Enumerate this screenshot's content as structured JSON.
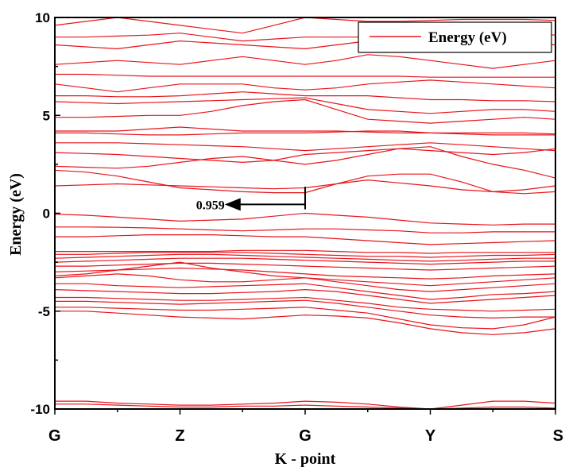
{
  "chart_data": {
    "type": "line",
    "title": "",
    "xlabel": "K - point",
    "ylabel": "Energy (eV)",
    "ylim": [
      -10,
      10
    ],
    "y_ticks": [
      "10",
      "5",
      "0",
      "-5",
      "-10"
    ],
    "x_ticks": [
      "G",
      "Z",
      "G",
      "Y",
      "S"
    ],
    "x_tick_positions": [
      0,
      1,
      2,
      3,
      4
    ],
    "grid": false,
    "legend": {
      "position": "top-right",
      "label": "Energy (eV)"
    },
    "series_color": "#e8141b",
    "annotation": {
      "text": "0.959",
      "x": 2.0,
      "y_from": 0.2,
      "y_to": 1.35,
      "arrow_to_x": 1.37,
      "arrow_to_y": 0.45
    },
    "x": [
      0,
      0.25,
      0.5,
      0.75,
      1,
      1.25,
      1.5,
      1.75,
      2,
      2.25,
      2.5,
      2.75,
      3,
      3.25,
      3.5,
      3.75,
      4
    ],
    "series": [
      {
        "values": [
          -9.6,
          -9.6,
          -9.7,
          -9.75,
          -9.8,
          -9.8,
          -9.75,
          -9.7,
          -9.6,
          -9.65,
          -9.75,
          -9.9,
          -10.0,
          -9.8,
          -9.6,
          -9.6,
          -9.7
        ]
      },
      {
        "values": [
          -9.75,
          -9.75,
          -9.8,
          -9.85,
          -9.9,
          -9.9,
          -9.85,
          -9.85,
          -9.8,
          -9.85,
          -9.9,
          -9.95,
          -10.0,
          -9.95,
          -9.9,
          -9.9,
          -9.95
        ]
      },
      {
        "values": [
          -5.0,
          -5.0,
          -5.1,
          -5.2,
          -5.3,
          -5.35,
          -5.4,
          -5.3,
          -5.2,
          -5.25,
          -5.35,
          -5.6,
          -5.9,
          -6.1,
          -6.2,
          -6.1,
          -5.9
        ]
      },
      {
        "values": [
          -4.8,
          -4.8,
          -4.85,
          -4.9,
          -4.95,
          -4.95,
          -4.9,
          -4.85,
          -4.8,
          -4.95,
          -5.1,
          -5.4,
          -5.7,
          -5.85,
          -5.9,
          -5.7,
          -5.3
        ]
      },
      {
        "values": [
          -4.5,
          -4.5,
          -4.55,
          -4.6,
          -4.65,
          -4.6,
          -4.55,
          -4.5,
          -4.45,
          -4.6,
          -4.8,
          -5.0,
          -5.2,
          -5.3,
          -5.35,
          -5.3,
          -5.3
        ]
      },
      {
        "values": [
          -4.3,
          -4.3,
          -4.35,
          -4.4,
          -4.45,
          -4.45,
          -4.4,
          -4.35,
          -4.3,
          -4.45,
          -4.6,
          -4.8,
          -4.9,
          -4.95,
          -5.0,
          -4.95,
          -4.9
        ]
      },
      {
        "values": [
          -3.9,
          -3.95,
          -4.0,
          -4.05,
          -4.1,
          -4.1,
          -4.05,
          -4.0,
          -3.9,
          -4.0,
          -4.2,
          -4.4,
          -4.6,
          -4.5,
          -4.4,
          -4.3,
          -4.2
        ]
      },
      {
        "values": [
          -3.6,
          -3.6,
          -3.7,
          -3.75,
          -3.8,
          -3.75,
          -3.7,
          -3.65,
          -3.6,
          -3.8,
          -4.0,
          -4.2,
          -4.4,
          -4.3,
          -4.15,
          -4.1,
          -4.0
        ]
      },
      {
        "values": [
          -3.3,
          -3.2,
          -3.1,
          -3.2,
          -3.4,
          -3.5,
          -3.5,
          -3.4,
          -3.3,
          -3.5,
          -3.7,
          -3.9,
          -4.0,
          -3.9,
          -3.8,
          -3.7,
          -3.6
        ]
      },
      {
        "values": [
          -3.2,
          -3.1,
          -2.9,
          -2.7,
          -2.5,
          -2.8,
          -3.0,
          -3.2,
          -3.3,
          -3.4,
          -3.5,
          -3.6,
          -3.7,
          -3.6,
          -3.5,
          -3.4,
          -3.3
        ]
      },
      {
        "values": [
          -3.0,
          -2.95,
          -2.9,
          -2.85,
          -2.8,
          -2.85,
          -2.9,
          -3.0,
          -3.1,
          -3.2,
          -3.25,
          -3.3,
          -3.35,
          -3.3,
          -3.2,
          -3.15,
          -3.1
        ]
      },
      {
        "values": [
          -2.7,
          -2.7,
          -2.65,
          -2.6,
          -2.55,
          -2.55,
          -2.6,
          -2.65,
          -2.7,
          -2.75,
          -2.8,
          -2.85,
          -2.9,
          -2.85,
          -2.8,
          -2.75,
          -2.7
        ]
      },
      {
        "values": [
          -2.5,
          -2.45,
          -2.4,
          -2.35,
          -2.3,
          -2.3,
          -2.3,
          -2.35,
          -2.4,
          -2.45,
          -2.5,
          -2.55,
          -2.6,
          -2.55,
          -2.5,
          -2.45,
          -2.45
        ]
      },
      {
        "values": [
          -2.3,
          -2.25,
          -2.2,
          -2.15,
          -2.1,
          -2.1,
          -2.15,
          -2.2,
          -2.25,
          -2.3,
          -2.35,
          -2.4,
          -2.45,
          -2.4,
          -2.35,
          -2.3,
          -2.3
        ]
      },
      {
        "values": [
          -2.1,
          -2.1,
          -2.05,
          -2.0,
          -2.0,
          -2.0,
          -2.0,
          -2.05,
          -2.1,
          -2.15,
          -2.2,
          -2.2,
          -2.25,
          -2.2,
          -2.15,
          -2.15,
          -2.1
        ]
      },
      {
        "values": [
          -1.95,
          -1.95,
          -1.95,
          -1.95,
          -1.95,
          -1.95,
          -1.9,
          -1.9,
          -1.9,
          -1.95,
          -2.0,
          -2.0,
          -2.05,
          -2.0,
          -2.0,
          -2.0,
          -2.0
        ]
      },
      {
        "values": [
          -1.2,
          -1.2,
          -1.15,
          -1.1,
          -1.1,
          -1.1,
          -1.15,
          -1.2,
          -1.2,
          -1.3,
          -1.4,
          -1.5,
          -1.6,
          -1.55,
          -1.5,
          -1.45,
          -1.4
        ]
      },
      {
        "values": [
          -0.7,
          -0.7,
          -0.72,
          -0.75,
          -0.8,
          -0.85,
          -0.9,
          -0.85,
          -0.8,
          -0.8,
          -0.85,
          -0.9,
          -1.0,
          -1.0,
          -0.95,
          -0.95,
          -0.95
        ]
      },
      {
        "values": [
          -0.05,
          -0.1,
          -0.2,
          -0.3,
          -0.4,
          -0.35,
          -0.3,
          -0.15,
          0.0,
          -0.1,
          -0.2,
          -0.35,
          -0.5,
          -0.55,
          -0.6,
          -0.55,
          -0.55
        ]
      },
      {
        "values": [
          1.4,
          1.45,
          1.5,
          1.45,
          1.4,
          1.35,
          1.3,
          1.25,
          1.3,
          1.5,
          1.7,
          1.55,
          1.4,
          1.2,
          1.1,
          1.2,
          1.4
        ]
      },
      {
        "values": [
          2.2,
          2.1,
          1.9,
          1.6,
          1.3,
          1.2,
          1.1,
          1.05,
          1.05,
          1.5,
          1.9,
          2.0,
          2.0,
          1.6,
          1.1,
          1.0,
          1.1
        ]
      },
      {
        "values": [
          2.4,
          2.35,
          2.3,
          2.4,
          2.6,
          2.8,
          2.9,
          2.7,
          2.5,
          2.7,
          3.0,
          3.3,
          3.4,
          2.9,
          2.5,
          2.2,
          1.8
        ]
      },
      {
        "values": [
          3.1,
          3.05,
          3.0,
          2.9,
          2.8,
          2.7,
          2.6,
          2.7,
          3.0,
          3.1,
          3.2,
          3.3,
          3.2,
          3.1,
          3.0,
          3.1,
          3.3
        ]
      },
      {
        "values": [
          3.6,
          3.6,
          3.6,
          3.55,
          3.5,
          3.45,
          3.4,
          3.3,
          3.2,
          3.3,
          3.4,
          3.5,
          3.6,
          3.5,
          3.4,
          3.3,
          3.2
        ]
      },
      {
        "values": [
          4.1,
          4.1,
          4.05,
          4.0,
          4.0,
          4.05,
          4.1,
          4.1,
          4.1,
          4.15,
          4.2,
          4.2,
          4.1,
          4.05,
          4.0,
          4.0,
          4.0
        ]
      },
      {
        "values": [
          4.2,
          4.2,
          4.2,
          4.3,
          4.4,
          4.3,
          4.2,
          4.2,
          4.2,
          4.2,
          4.15,
          4.1,
          4.1,
          4.1,
          4.1,
          4.1,
          4.05
        ]
      },
      {
        "values": [
          4.9,
          4.9,
          4.95,
          5.0,
          5.0,
          5.2,
          5.5,
          5.7,
          5.8,
          5.3,
          4.8,
          4.7,
          4.6,
          4.7,
          4.8,
          4.9,
          4.8
        ]
      },
      {
        "values": [
          5.7,
          5.65,
          5.6,
          5.65,
          5.7,
          5.75,
          5.8,
          5.85,
          5.9,
          5.6,
          5.3,
          5.2,
          5.1,
          5.2,
          5.3,
          5.3,
          5.2
        ]
      },
      {
        "values": [
          6.0,
          6.0,
          5.95,
          5.95,
          6.0,
          6.1,
          6.2,
          6.1,
          6.0,
          6.0,
          6.0,
          5.9,
          5.8,
          5.8,
          5.75,
          5.75,
          5.7
        ]
      },
      {
        "values": [
          6.6,
          6.4,
          6.2,
          6.4,
          6.6,
          6.6,
          6.6,
          6.4,
          6.3,
          6.4,
          6.6,
          6.7,
          6.8,
          6.7,
          6.6,
          6.5,
          6.4
        ]
      },
      {
        "values": [
          7.1,
          7.1,
          7.05,
          7.0,
          7.0,
          7.0,
          7.0,
          7.0,
          7.0,
          7.0,
          7.0,
          7.0,
          6.95,
          6.95,
          6.95,
          6.95,
          6.95
        ]
      },
      {
        "values": [
          7.6,
          7.7,
          7.8,
          7.7,
          7.6,
          7.8,
          8.0,
          7.8,
          7.6,
          7.8,
          8.1,
          8.0,
          7.8,
          7.6,
          7.4,
          7.6,
          7.8
        ]
      },
      {
        "values": [
          8.6,
          8.5,
          8.4,
          8.6,
          8.8,
          8.7,
          8.6,
          8.5,
          8.4,
          8.6,
          8.8,
          8.9,
          9.0,
          8.9,
          8.8,
          8.7,
          8.6
        ]
      },
      {
        "values": [
          9.0,
          9.0,
          9.05,
          9.1,
          9.2,
          9.0,
          8.8,
          8.9,
          9.0,
          9.0,
          9.0,
          9.05,
          9.1,
          9.2,
          9.3,
          9.2,
          9.1
        ]
      },
      {
        "values": [
          9.6,
          9.8,
          10.0,
          9.8,
          9.6,
          9.4,
          9.2,
          9.6,
          10.0,
          9.9,
          9.8,
          9.8,
          9.85,
          9.9,
          9.9,
          9.9,
          9.85
        ]
      }
    ]
  }
}
